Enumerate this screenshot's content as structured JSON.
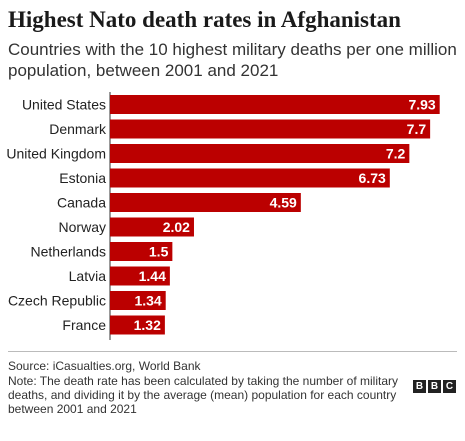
{
  "header": {
    "title": "Highest Nato death rates in Afghanistan",
    "subtitle": "Countries with the 10 highest military deaths per one million population, between 2001 and 2021"
  },
  "chart_data": {
    "type": "bar",
    "orientation": "horizontal",
    "title": "Highest Nato death rates in Afghanistan",
    "subtitle": "Countries with the 10 highest military deaths per one million population, between 2001 and 2021",
    "categories": [
      "United States",
      "Denmark",
      "United Kingdom",
      "Estonia",
      "Canada",
      "Norway",
      "Netherlands",
      "Latvia",
      "Czech Republic",
      "France"
    ],
    "values": [
      7.93,
      7.7,
      7.2,
      6.73,
      4.59,
      2.02,
      1.5,
      1.44,
      1.34,
      1.32
    ],
    "value_labels": [
      "7.93",
      "7.7",
      "7.2",
      "6.73",
      "4.59",
      "2.02",
      "1.5",
      "1.44",
      "1.34",
      "1.32"
    ],
    "xlim": [
      0,
      8.25
    ],
    "bar_color": "#bb0000",
    "grid": false,
    "legend": "none"
  },
  "footer": {
    "source": "Source: iCasualties.org, World Bank",
    "note": "Note: The death rate has been calculated by taking the number of military deaths, and dividing it by the average (mean) population for each country between 2001 and 2021",
    "logo_letters": [
      "B",
      "B",
      "C"
    ]
  }
}
